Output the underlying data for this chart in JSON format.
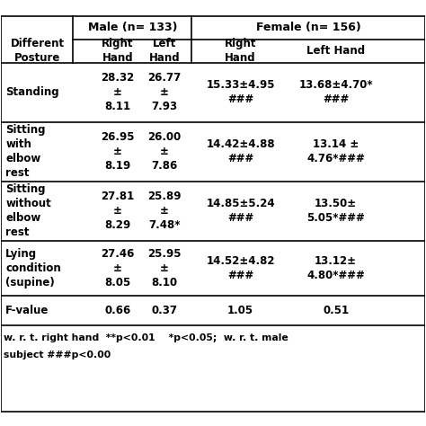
{
  "male_header": "Male (n= 133)",
  "female_header": "Female (n= 156)",
  "col_headers_sub": [
    "Different\nPosture",
    "Right\nHand",
    "Left\nHand",
    "Right\nHand",
    "Left Hand"
  ],
  "rows": [
    {
      "label": "Standing",
      "male_right": "28.32\n±\n8.11",
      "male_left": "26.77\n±\n7.93",
      "female_right": "15.33±4.95\n###",
      "female_left": "13.68±4.70*\n###"
    },
    {
      "label": "Sitting\nwith\nelbow\nrest",
      "male_right": "26.95\n±\n8.19",
      "male_left": "26.00\n±\n7.86",
      "female_right": "14.42±4.88\n###",
      "female_left": "13.14 ±\n4.76*###"
    },
    {
      "label": "Sitting\nwithout\nelbow\nrest",
      "male_right": "27.81\n±\n8.29",
      "male_left": "25.89\n±\n7.48*",
      "female_right": "14.85±5.24\n###",
      "female_left": "13.50±\n5.05*###"
    },
    {
      "label": "Lying\ncondition\n(supine)",
      "male_right": "27.46\n±\n8.05",
      "male_left": "25.95\n±\n8.10",
      "female_right": "14.52±4.82\n###",
      "female_left": "13.12±\n4.80*###"
    }
  ],
  "fvalue_row": {
    "label": "F-value",
    "male_right": "0.66",
    "male_left": "0.37",
    "female_right": "1.05",
    "female_left": "0.51"
  },
  "footnote1": "w. r. t. right hand  **p<0.01    *p<0.05;  w. r. t. male",
  "footnote2": "subject ###p<0.00",
  "bg_color": "#ffffff",
  "text_color": "#000000",
  "line_color": "#000000",
  "fs_main": 8.5,
  "fs_header": 9.0,
  "fs_footnote": 7.8
}
